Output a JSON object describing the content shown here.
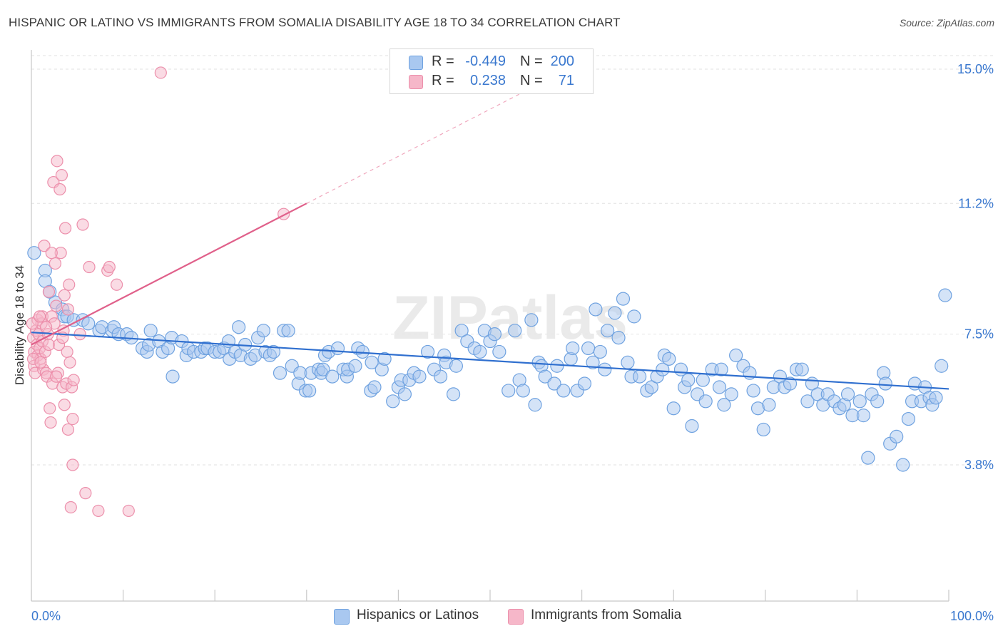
{
  "title": "HISPANIC OR LATINO VS IMMIGRANTS FROM SOMALIA DISABILITY AGE 18 TO 34 CORRELATION CHART",
  "source": "Source: ZipAtlas.com",
  "watermark": "ZIPatlas",
  "legend": {
    "rows": [
      {
        "r_label": "R =",
        "r_value": "-0.449",
        "n_label": "N =",
        "n_value": "200",
        "color": "#a9c8f0"
      },
      {
        "r_label": "R =",
        "r_value": "0.238",
        "n_label": "N =",
        "n_value": "71",
        "color": "#f6b7c9"
      }
    ]
  },
  "bottom_legend": {
    "items": [
      {
        "label": "Hispanics or Latinos",
        "color": "#a9c8f0"
      },
      {
        "label": "Immigrants from Somalia",
        "color": "#f6b7c9"
      }
    ]
  },
  "chart_data": {
    "type": "scatter",
    "title": "HISPANIC OR LATINO VS IMMIGRANTS FROM SOMALIA DISABILITY AGE 18 TO 34 CORRELATION CHART",
    "xlabel": "",
    "ylabel": "Disability Age 18 to 34",
    "xlim": [
      0,
      100
    ],
    "ylim": [
      0,
      15.5
    ],
    "x_tick_labels": [
      "0.0%",
      "100.0%"
    ],
    "y_ticks": [
      3.8,
      7.5,
      11.2,
      15.0
    ],
    "y_tick_labels": [
      "3.8%",
      "7.5%",
      "11.2%",
      "15.0%"
    ],
    "grid": true,
    "legend_position": "top-center",
    "series": [
      {
        "name": "Hispanics or Latinos",
        "color": "#a9c8f0",
        "stroke": "#6fa2e0",
        "trend": {
          "x": [
            0,
            100
          ],
          "y": [
            7.55,
            5.95
          ],
          "color": "#2f6fcf"
        },
        "points": [
          [
            0.3,
            9.8
          ],
          [
            1.5,
            9.3
          ],
          [
            1.5,
            9.0
          ],
          [
            2.0,
            8.7
          ],
          [
            2.6,
            8.4
          ],
          [
            3.4,
            8.2
          ],
          [
            3.6,
            8.0
          ],
          [
            3.9,
            8.0
          ],
          [
            4.6,
            7.9
          ],
          [
            5.6,
            7.9
          ],
          [
            6.2,
            7.8
          ],
          [
            7.4,
            7.6
          ],
          [
            7.7,
            7.7
          ],
          [
            8.8,
            7.6
          ],
          [
            9.0,
            7.7
          ],
          [
            9.5,
            7.5
          ],
          [
            10.4,
            7.5
          ],
          [
            10.9,
            7.4
          ],
          [
            12.1,
            7.1
          ],
          [
            12.6,
            7.0
          ],
          [
            12.8,
            7.2
          ],
          [
            13.0,
            7.6
          ],
          [
            13.9,
            7.3
          ],
          [
            14.3,
            7.0
          ],
          [
            14.9,
            7.1
          ],
          [
            15.3,
            7.4
          ],
          [
            15.4,
            6.3
          ],
          [
            16.4,
            7.3
          ],
          [
            16.9,
            6.9
          ],
          [
            17.1,
            7.1
          ],
          [
            17.7,
            7.0
          ],
          [
            18.5,
            7.0
          ],
          [
            18.9,
            7.1
          ],
          [
            19.2,
            7.1
          ],
          [
            20.0,
            7.0
          ],
          [
            20.5,
            7.0
          ],
          [
            21.0,
            7.1
          ],
          [
            21.5,
            7.3
          ],
          [
            21.6,
            6.8
          ],
          [
            22.2,
            7.0
          ],
          [
            22.6,
            7.7
          ],
          [
            22.8,
            6.9
          ],
          [
            23.3,
            7.2
          ],
          [
            23.9,
            6.8
          ],
          [
            24.4,
            6.9
          ],
          [
            24.7,
            7.4
          ],
          [
            25.3,
            7.6
          ],
          [
            25.5,
            7.0
          ],
          [
            26.0,
            6.9
          ],
          [
            26.4,
            7.0
          ],
          [
            27.1,
            6.4
          ],
          [
            27.5,
            7.6
          ],
          [
            28.0,
            7.6
          ],
          [
            28.4,
            6.6
          ],
          [
            29.1,
            6.1
          ],
          [
            29.3,
            6.4
          ],
          [
            29.9,
            5.9
          ],
          [
            30.3,
            5.9
          ],
          [
            30.5,
            6.4
          ],
          [
            31.3,
            6.5
          ],
          [
            31.6,
            6.4
          ],
          [
            31.8,
            6.5
          ],
          [
            32.0,
            6.9
          ],
          [
            32.4,
            7.0
          ],
          [
            32.8,
            6.3
          ],
          [
            33.4,
            7.1
          ],
          [
            34.0,
            6.5
          ],
          [
            34.4,
            6.3
          ],
          [
            34.5,
            6.5
          ],
          [
            35.3,
            6.6
          ],
          [
            35.6,
            7.1
          ],
          [
            36.1,
            7.0
          ],
          [
            37.0,
            5.9
          ],
          [
            37.1,
            6.7
          ],
          [
            37.4,
            6.0
          ],
          [
            38.2,
            6.5
          ],
          [
            38.5,
            6.8
          ],
          [
            39.4,
            5.6
          ],
          [
            40.0,
            6.0
          ],
          [
            40.3,
            6.2
          ],
          [
            40.7,
            5.8
          ],
          [
            41.2,
            6.2
          ],
          [
            41.7,
            6.4
          ],
          [
            42.3,
            6.3
          ],
          [
            43.2,
            7.0
          ],
          [
            43.9,
            6.5
          ],
          [
            44.6,
            6.3
          ],
          [
            45.0,
            6.9
          ],
          [
            45.2,
            6.7
          ],
          [
            46.0,
            5.8
          ],
          [
            46.3,
            6.6
          ],
          [
            46.9,
            7.6
          ],
          [
            47.5,
            7.3
          ],
          [
            48.3,
            7.1
          ],
          [
            48.9,
            7.0
          ],
          [
            49.4,
            7.6
          ],
          [
            50.0,
            7.3
          ],
          [
            50.5,
            7.5
          ],
          [
            51.0,
            7.0
          ],
          [
            52.0,
            5.9
          ],
          [
            52.7,
            7.6
          ],
          [
            53.2,
            6.2
          ],
          [
            53.6,
            5.9
          ],
          [
            54.5,
            7.9
          ],
          [
            54.9,
            5.5
          ],
          [
            55.3,
            6.7
          ],
          [
            55.6,
            6.6
          ],
          [
            56.0,
            6.3
          ],
          [
            57.0,
            6.1
          ],
          [
            57.3,
            6.6
          ],
          [
            58.0,
            5.9
          ],
          [
            58.8,
            6.8
          ],
          [
            59.0,
            7.1
          ],
          [
            59.5,
            5.9
          ],
          [
            60.3,
            6.1
          ],
          [
            60.7,
            7.1
          ],
          [
            61.2,
            6.7
          ],
          [
            61.5,
            8.2
          ],
          [
            62.0,
            7.0
          ],
          [
            62.5,
            6.5
          ],
          [
            62.8,
            7.6
          ],
          [
            63.6,
            8.1
          ],
          [
            64.0,
            7.4
          ],
          [
            64.5,
            8.5
          ],
          [
            65.0,
            6.7
          ],
          [
            65.4,
            6.3
          ],
          [
            65.7,
            8.0
          ],
          [
            66.3,
            6.3
          ],
          [
            67.1,
            5.9
          ],
          [
            67.6,
            6.0
          ],
          [
            68.2,
            6.3
          ],
          [
            68.8,
            6.5
          ],
          [
            69.0,
            6.9
          ],
          [
            69.5,
            6.8
          ],
          [
            70.0,
            5.4
          ],
          [
            70.8,
            6.5
          ],
          [
            71.2,
            6.0
          ],
          [
            71.6,
            6.2
          ],
          [
            72.0,
            4.9
          ],
          [
            72.6,
            5.8
          ],
          [
            73.2,
            6.2
          ],
          [
            73.5,
            5.6
          ],
          [
            74.2,
            6.5
          ],
          [
            75.0,
            6.0
          ],
          [
            75.2,
            6.5
          ],
          [
            75.5,
            5.5
          ],
          [
            76.3,
            5.8
          ],
          [
            76.8,
            6.9
          ],
          [
            77.6,
            6.6
          ],
          [
            78.3,
            6.4
          ],
          [
            78.7,
            5.9
          ],
          [
            79.2,
            5.4
          ],
          [
            79.8,
            4.8
          ],
          [
            80.4,
            5.5
          ],
          [
            80.9,
            6.0
          ],
          [
            81.6,
            6.3
          ],
          [
            82.1,
            6.0
          ],
          [
            82.7,
            6.1
          ],
          [
            83.4,
            6.5
          ],
          [
            84.0,
            6.5
          ],
          [
            84.6,
            5.6
          ],
          [
            85.1,
            6.1
          ],
          [
            85.7,
            5.8
          ],
          [
            86.3,
            5.5
          ],
          [
            86.8,
            5.8
          ],
          [
            87.5,
            5.6
          ],
          [
            88.1,
            5.4
          ],
          [
            88.6,
            5.5
          ],
          [
            89.0,
            5.8
          ],
          [
            89.5,
            5.2
          ],
          [
            90.3,
            5.6
          ],
          [
            90.7,
            5.2
          ],
          [
            91.2,
            4.0
          ],
          [
            91.6,
            5.8
          ],
          [
            92.2,
            5.6
          ],
          [
            92.9,
            6.4
          ],
          [
            93.1,
            6.1
          ],
          [
            93.6,
            4.4
          ],
          [
            94.3,
            4.6
          ],
          [
            95.0,
            3.8
          ],
          [
            95.6,
            5.1
          ],
          [
            96.0,
            5.6
          ],
          [
            96.3,
            6.1
          ],
          [
            97.0,
            5.6
          ],
          [
            97.4,
            6.0
          ],
          [
            97.9,
            5.7
          ],
          [
            98.2,
            5.5
          ],
          [
            98.6,
            5.7
          ],
          [
            99.2,
            6.6
          ],
          [
            99.6,
            8.6
          ]
        ]
      },
      {
        "name": "Immigrants from Somalia",
        "color": "#f6b7c9",
        "stroke": "#ec8fab",
        "trend": {
          "x": [
            0,
            30
          ],
          "y": [
            7.2,
            11.2
          ],
          "dashed_to_x": 100,
          "color": "#e0608a"
        },
        "points": [
          [
            0.2,
            7.4
          ],
          [
            0.3,
            7.0
          ],
          [
            0.3,
            6.6
          ],
          [
            0.4,
            6.4
          ],
          [
            0.5,
            7.6
          ],
          [
            0.6,
            7.2
          ],
          [
            0.7,
            6.9
          ],
          [
            0.7,
            7.9
          ],
          [
            0.8,
            7.5
          ],
          [
            0.9,
            7.1
          ],
          [
            1.0,
            6.8
          ],
          [
            1.1,
            7.8
          ],
          [
            1.2,
            8.0
          ],
          [
            1.2,
            7.3
          ],
          [
            1.3,
            6.5
          ],
          [
            1.4,
            10.0
          ],
          [
            1.5,
            7.0
          ],
          [
            1.6,
            6.4
          ],
          [
            1.7,
            6.3
          ],
          [
            1.8,
            7.5
          ],
          [
            1.9,
            7.2
          ],
          [
            2.0,
            5.4
          ],
          [
            2.1,
            5.0
          ],
          [
            2.2,
            8.0
          ],
          [
            2.3,
            6.1
          ],
          [
            2.4,
            11.8
          ],
          [
            2.5,
            7.8
          ],
          [
            2.6,
            9.5
          ],
          [
            2.7,
            8.3
          ],
          [
            2.8,
            12.4
          ],
          [
            2.9,
            6.4
          ],
          [
            3.0,
            7.2
          ],
          [
            3.1,
            11.6
          ],
          [
            3.2,
            9.8
          ],
          [
            3.3,
            12.0
          ],
          [
            3.4,
            6.0
          ],
          [
            3.5,
            7.6
          ],
          [
            3.6,
            5.5
          ],
          [
            3.6,
            8.6
          ],
          [
            3.7,
            10.5
          ],
          [
            3.8,
            6.1
          ],
          [
            3.9,
            7.0
          ],
          [
            4.0,
            8.2
          ],
          [
            4.0,
            4.8
          ],
          [
            4.1,
            8.9
          ],
          [
            4.2,
            6.7
          ],
          [
            4.3,
            2.6
          ],
          [
            4.4,
            6.0
          ],
          [
            4.5,
            5.1
          ],
          [
            4.5,
            3.8
          ],
          [
            4.6,
            6.2
          ],
          [
            5.3,
            7.5
          ],
          [
            5.6,
            10.6
          ],
          [
            5.9,
            3.0
          ],
          [
            6.3,
            9.4
          ],
          [
            7.3,
            2.5
          ],
          [
            8.3,
            9.3
          ],
          [
            8.5,
            9.4
          ],
          [
            9.3,
            8.9
          ],
          [
            10.6,
            2.5
          ],
          [
            14.1,
            14.9
          ],
          [
            27.5,
            10.9
          ],
          [
            0.1,
            7.8
          ],
          [
            0.2,
            6.8
          ],
          [
            0.9,
            8.0
          ],
          [
            1.0,
            6.7
          ],
          [
            1.6,
            7.7
          ],
          [
            2.7,
            6.3
          ],
          [
            3.4,
            7.4
          ],
          [
            1.9,
            8.7
          ],
          [
            2.2,
            9.8
          ]
        ]
      }
    ]
  }
}
